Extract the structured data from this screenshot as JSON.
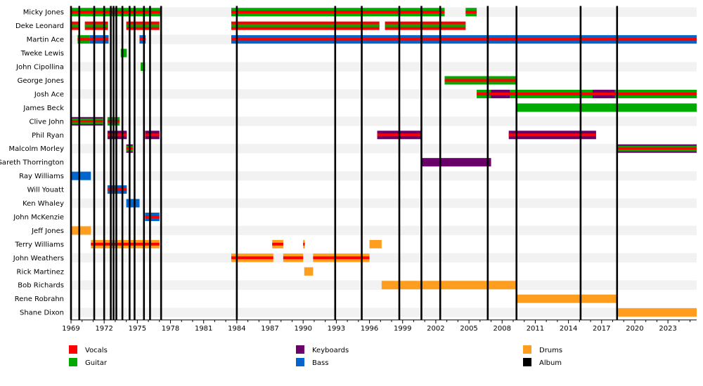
{
  "chart_data": {
    "type": "timeline",
    "title": "",
    "xlabel": "",
    "ylabel": "",
    "x_range": [
      1969,
      2025.6
    ],
    "x_ticks": [
      1969,
      1972,
      1975,
      1978,
      1981,
      1984,
      1987,
      1990,
      1993,
      1996,
      1999,
      2002,
      2005,
      2008,
      2011,
      2014,
      2017,
      2020,
      2023
    ],
    "grid": "alternating row stripes",
    "legend_placement": "bottom",
    "colors": {
      "Vocals": "#ff0000",
      "Guitar": "#00aa00",
      "Keyboards": "#6a006a",
      "Bass": "#0066cc",
      "Drums": "#ff9e1e",
      "Album": "#000000"
    },
    "legend": [
      {
        "label": "Vocals",
        "color": "#ff0000"
      },
      {
        "label": "Guitar",
        "color": "#00aa00"
      },
      {
        "label": "Keyboards",
        "color": "#6a006a"
      },
      {
        "label": "Bass",
        "color": "#0066cc"
      },
      {
        "label": "Drums",
        "color": "#ff9e1e"
      },
      {
        "label": "Album",
        "color": "#000000"
      }
    ],
    "albums": [
      1969.0,
      1969.75,
      1971.1,
      1972.0,
      1972.6,
      1972.85,
      1973.1,
      1973.65,
      1974.3,
      1974.75,
      1975.6,
      1976.15,
      1977.15,
      1984.0,
      1992.9,
      1995.3,
      1998.7,
      2000.7,
      2002.4,
      2006.7,
      2009.3,
      2015.1,
      2018.4
    ],
    "members": [
      {
        "name": "Micky Jones",
        "periods": [
          {
            "start": 1969.0,
            "end": 1977.15,
            "roles": [
              "Guitar",
              "Vocals"
            ]
          },
          {
            "start": 1983.5,
            "end": 2002.8,
            "roles": [
              "Guitar",
              "Vocals"
            ]
          },
          {
            "start": 2004.7,
            "end": 2005.7,
            "roles": [
              "Guitar",
              "Vocals"
            ]
          }
        ]
      },
      {
        "name": "Deke Leonard",
        "periods": [
          {
            "start": 1969.0,
            "end": 1969.75,
            "roles": [
              "Vocals",
              "Guitar"
            ]
          },
          {
            "start": 1970.25,
            "end": 1972.35,
            "roles": [
              "Vocals",
              "Guitar"
            ]
          },
          {
            "start": 1974.0,
            "end": 1977.0,
            "roles": [
              "Vocals",
              "Guitar"
            ]
          },
          {
            "start": 1983.5,
            "end": 1996.9,
            "roles": [
              "Vocals",
              "Guitar"
            ]
          },
          {
            "start": 1997.4,
            "end": 2004.7,
            "roles": [
              "Vocals",
              "Guitar"
            ]
          }
        ]
      },
      {
        "name": "Martin Ace",
        "periods": [
          {
            "start": 1969.6,
            "end": 1970.7,
            "roles": [
              "Guitar",
              "Vocals"
            ]
          },
          {
            "start": 1970.7,
            "end": 1972.4,
            "roles": [
              "Bass",
              "Vocals"
            ]
          },
          {
            "start": 1975.2,
            "end": 1975.75,
            "roles": [
              "Bass",
              "Vocals"
            ]
          },
          {
            "start": 1983.5,
            "end": 2025.6,
            "roles": [
              "Bass",
              "Vocals"
            ]
          }
        ]
      },
      {
        "name": "Tweke Lewis",
        "periods": [
          {
            "start": 1973.5,
            "end": 1974.05,
            "roles": [
              "Guitar"
            ]
          }
        ]
      },
      {
        "name": "John Cipollina",
        "periods": [
          {
            "start": 1975.3,
            "end": 1975.7,
            "roles": [
              "Guitar"
            ]
          }
        ]
      },
      {
        "name": "George Jones",
        "periods": [
          {
            "start": 2002.8,
            "end": 2009.3,
            "roles": [
              "Guitar",
              "Vocals"
            ]
          }
        ]
      },
      {
        "name": "Josh Ace",
        "periods": [
          {
            "start": 2005.7,
            "end": 2025.6,
            "roles": [
              "Guitar",
              "Vocals"
            ]
          },
          {
            "start": 2007.0,
            "end": 2008.7,
            "roles": [
              "Keyboards",
              "Vocals"
            ]
          },
          {
            "start": 2016.2,
            "end": 2018.2,
            "roles": [
              "Keyboards",
              "Vocals"
            ]
          }
        ]
      },
      {
        "name": "James Beck",
        "periods": [
          {
            "start": 2009.3,
            "end": 2025.6,
            "roles": [
              "Guitar"
            ]
          }
        ]
      },
      {
        "name": "Clive John",
        "periods": [
          {
            "start": 1969.0,
            "end": 1971.9,
            "roles": [
              "Keyboards",
              "Guitar",
              "Vocals"
            ]
          },
          {
            "start": 1972.3,
            "end": 1973.4,
            "roles": [
              "Guitar",
              "Vocals"
            ]
          }
        ]
      },
      {
        "name": "Phil Ryan",
        "periods": [
          {
            "start": 1972.3,
            "end": 1974.05,
            "roles": [
              "Keyboards",
              "Vocals"
            ]
          },
          {
            "start": 1975.7,
            "end": 1977.0,
            "roles": [
              "Keyboards",
              "Vocals"
            ]
          },
          {
            "start": 1996.7,
            "end": 2000.7,
            "roles": [
              "Keyboards",
              "Vocals"
            ]
          },
          {
            "start": 2008.6,
            "end": 2016.5,
            "roles": [
              "Keyboards",
              "Vocals"
            ]
          }
        ]
      },
      {
        "name": "Malcolm Morley",
        "periods": [
          {
            "start": 1974.0,
            "end": 1974.6,
            "roles": [
              "Keyboards",
              "Guitar",
              "Vocals"
            ]
          },
          {
            "start": 2018.4,
            "end": 2025.6,
            "roles": [
              "Keyboards",
              "Guitar",
              "Vocals"
            ]
          }
        ]
      },
      {
        "name": "Gareth Thorrington",
        "periods": [
          {
            "start": 2000.7,
            "end": 2007.0,
            "roles": [
              "Keyboards"
            ]
          }
        ]
      },
      {
        "name": "Ray Williams",
        "periods": [
          {
            "start": 1969.0,
            "end": 1970.8,
            "roles": [
              "Bass"
            ]
          }
        ]
      },
      {
        "name": "Will Youatt",
        "periods": [
          {
            "start": 1972.3,
            "end": 1974.05,
            "roles": [
              "Bass",
              "Vocals"
            ]
          }
        ]
      },
      {
        "name": "Ken Whaley",
        "periods": [
          {
            "start": 1974.0,
            "end": 1975.2,
            "roles": [
              "Bass"
            ]
          }
        ]
      },
      {
        "name": "John McKenzie",
        "periods": [
          {
            "start": 1975.7,
            "end": 1977.0,
            "roles": [
              "Bass",
              "Vocals"
            ]
          }
        ]
      },
      {
        "name": "Jeff Jones",
        "periods": [
          {
            "start": 1969.0,
            "end": 1970.8,
            "roles": [
              "Drums"
            ]
          }
        ]
      },
      {
        "name": "Terry Williams",
        "periods": [
          {
            "start": 1970.8,
            "end": 1977.0,
            "roles": [
              "Drums",
              "Vocals"
            ]
          },
          {
            "start": 1987.2,
            "end": 1988.2,
            "roles": [
              "Drums",
              "Vocals"
            ]
          },
          {
            "start": 1990.0,
            "end": 1990.15,
            "roles": [
              "Drums",
              "Vocals"
            ]
          },
          {
            "start": 1996.0,
            "end": 1997.1,
            "roles": [
              "Drums"
            ]
          }
        ]
      },
      {
        "name": "John Weathers",
        "periods": [
          {
            "start": 1983.5,
            "end": 1987.3,
            "roles": [
              "Drums",
              "Vocals"
            ]
          },
          {
            "start": 1988.2,
            "end": 1990.0,
            "roles": [
              "Drums",
              "Vocals"
            ]
          },
          {
            "start": 1990.9,
            "end": 1996.0,
            "roles": [
              "Drums",
              "Vocals"
            ]
          }
        ]
      },
      {
        "name": "Rick Martinez",
        "periods": [
          {
            "start": 1990.1,
            "end": 1990.9,
            "roles": [
              "Drums"
            ]
          }
        ]
      },
      {
        "name": "Bob Richards",
        "periods": [
          {
            "start": 1997.1,
            "end": 2009.3,
            "roles": [
              "Drums"
            ]
          }
        ]
      },
      {
        "name": "Rene Robrahn",
        "periods": [
          {
            "start": 2009.3,
            "end": 2018.4,
            "roles": [
              "Drums"
            ]
          }
        ]
      },
      {
        "name": "Shane Dixon",
        "periods": [
          {
            "start": 2018.4,
            "end": 2025.6,
            "roles": [
              "Drums"
            ]
          }
        ]
      }
    ]
  }
}
